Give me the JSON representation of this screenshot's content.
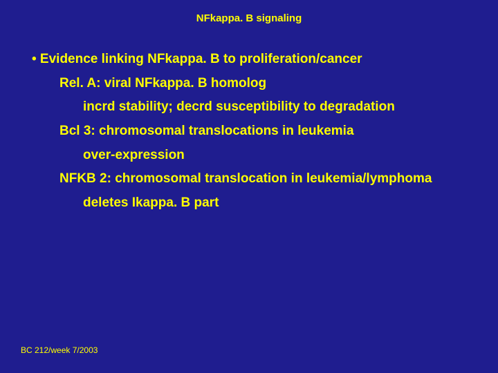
{
  "slide": {
    "background_color": "#1f1d8f",
    "text_color": "#ffff00",
    "title_fontsize": 15,
    "body_fontsize": 19,
    "footer_fontsize": 12,
    "font_family_body": "Comic Sans MS",
    "font_family_footer": "Arial"
  },
  "title": "NFkappa. B signaling",
  "lines": {
    "bullet": "• Evidence linking NFkappa. B to proliferation/cancer",
    "l1": "Rel. A: viral NFkappa. B homolog",
    "l2": "incrd stability; decrd susceptibility to degradation",
    "l3": "Bcl 3: chromosomal translocations in leukemia",
    "l4": "over-expression",
    "l5": "NFKB 2: chromosomal translocation in leukemia/lymphoma",
    "l6": "deletes Ikappa. B part"
  },
  "footer": "BC 212/week 7/2003"
}
